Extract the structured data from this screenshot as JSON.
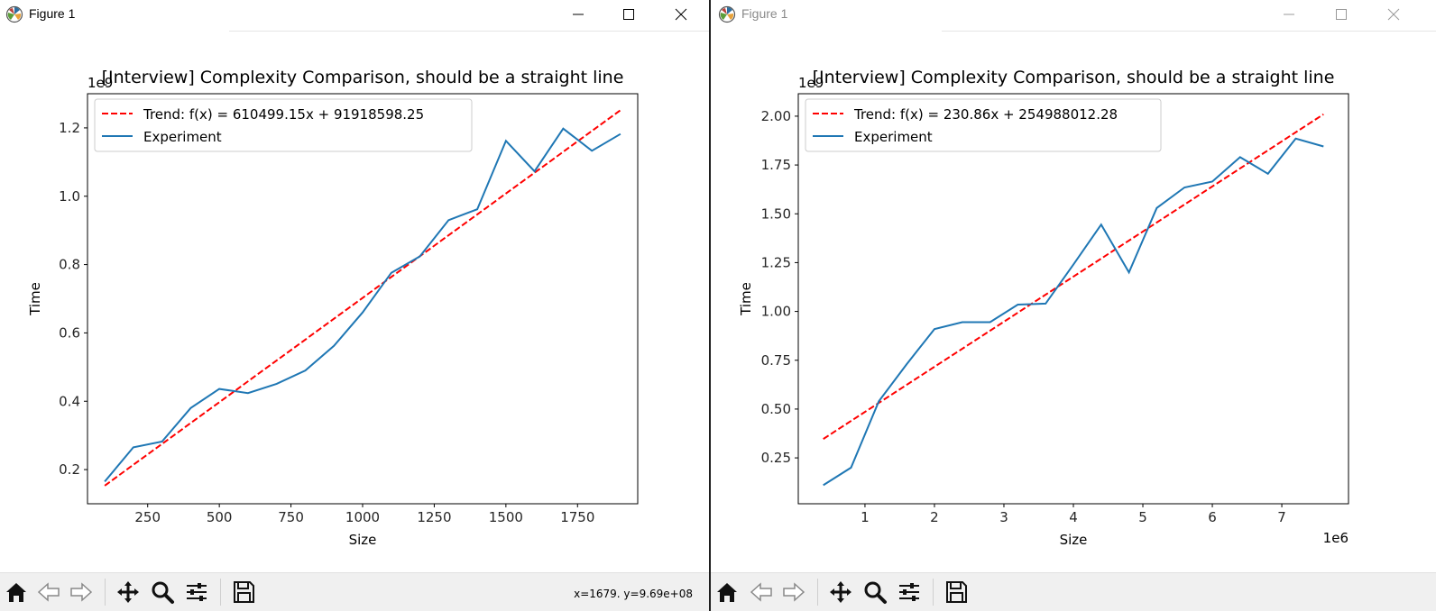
{
  "windows": [
    {
      "title": "Figure 1",
      "coords": "x=1679. y=9.69e+08",
      "chart": {
        "type": "line",
        "title": "[Interview] Complexity Comparison, should be a straight line",
        "xlabel": "Size",
        "ylabel": "Time",
        "x_offset_label": "",
        "y_offset_label": "1e9",
        "xlim": [
          40,
          1960
        ],
        "ylim": [
          0.1,
          1.3
        ],
        "xticks": [
          {
            "value": 250,
            "label": "250"
          },
          {
            "value": 500,
            "label": "500"
          },
          {
            "value": 750,
            "label": "750"
          },
          {
            "value": 1000,
            "label": "1000"
          },
          {
            "value": 1250,
            "label": "1250"
          },
          {
            "value": 1500,
            "label": "1500"
          },
          {
            "value": 1750,
            "label": "1750"
          }
        ],
        "yticks": [
          {
            "value": 0.2,
            "label": "0.2"
          },
          {
            "value": 0.4,
            "label": "0.4"
          },
          {
            "value": 0.6,
            "label": "0.6"
          },
          {
            "value": 0.8,
            "label": "0.8"
          },
          {
            "value": 1.0,
            "label": "1.0"
          },
          {
            "value": 1.2,
            "label": "1.2"
          }
        ],
        "legend_placement": "upper-left",
        "series": [
          {
            "name": "Trend: f(x) = 610499.15x + 91918598.25",
            "style": "dashed",
            "color": "#ff0000",
            "x": [
              100,
              1900
            ],
            "y": [
              0.153,
              1.252
            ]
          },
          {
            "name": "Experiment",
            "style": "solid",
            "color": "#1f77b4",
            "x": [
              100,
              200,
              300,
              400,
              500,
              600,
              700,
              800,
              900,
              1000,
              1100,
              1200,
              1300,
              1400,
              1500,
              1600,
              1700,
              1800,
              1900
            ],
            "y": [
              0.165,
              0.265,
              0.282,
              0.38,
              0.436,
              0.424,
              0.451,
              0.49,
              0.562,
              0.66,
              0.776,
              0.824,
              0.93,
              0.962,
              1.162,
              1.073,
              1.198,
              1.133,
              1.182
            ]
          }
        ]
      }
    },
    {
      "title": "Figure 1",
      "coords": "",
      "chart": {
        "type": "line",
        "title": "[Interview] Complexity Comparison, should be a straight line",
        "xlabel": "Size",
        "ylabel": "Time",
        "x_offset_label": "1e6",
        "y_offset_label": "1e9",
        "xlim": [
          0.04,
          7.96
        ],
        "ylim": [
          0.015,
          2.115
        ],
        "xticks": [
          {
            "value": 1,
            "label": "1"
          },
          {
            "value": 2,
            "label": "2"
          },
          {
            "value": 3,
            "label": "3"
          },
          {
            "value": 4,
            "label": "4"
          },
          {
            "value": 5,
            "label": "5"
          },
          {
            "value": 6,
            "label": "6"
          },
          {
            "value": 7,
            "label": "7"
          }
        ],
        "yticks": [
          {
            "value": 0.25,
            "label": "0.25"
          },
          {
            "value": 0.5,
            "label": "0.50"
          },
          {
            "value": 0.75,
            "label": "0.75"
          },
          {
            "value": 1.0,
            "label": "1.00"
          },
          {
            "value": 1.25,
            "label": "1.25"
          },
          {
            "value": 1.5,
            "label": "1.50"
          },
          {
            "value": 1.75,
            "label": "1.75"
          },
          {
            "value": 2.0,
            "label": "2.00"
          }
        ],
        "legend_placement": "upper-left",
        "series": [
          {
            "name": "Trend: f(x) = 230.86x + 254988012.28",
            "style": "dashed",
            "color": "#ff0000",
            "x": [
              0.4,
              7.6
            ],
            "y": [
              0.347,
              2.01
            ]
          },
          {
            "name": "Experiment",
            "style": "solid",
            "color": "#1f77b4",
            "x": [
              0.4,
              0.8,
              1.2,
              1.6,
              2.0,
              2.4,
              2.8,
              3.2,
              3.6,
              4.0,
              4.4,
              4.8,
              5.2,
              5.6,
              6.0,
              6.4,
              6.8,
              7.2,
              7.6
            ],
            "y": [
              0.11,
              0.2,
              0.54,
              0.73,
              0.91,
              0.945,
              0.945,
              1.035,
              1.04,
              1.24,
              1.445,
              1.2,
              1.53,
              1.635,
              1.665,
              1.79,
              1.705,
              1.885,
              1.845
            ]
          }
        ]
      }
    }
  ]
}
